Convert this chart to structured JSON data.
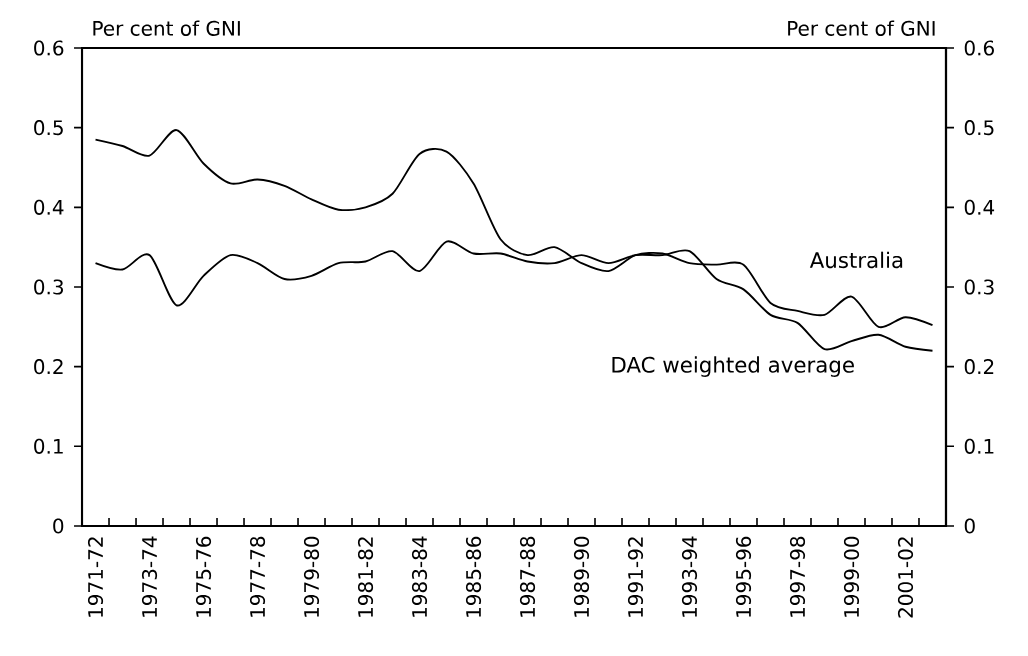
{
  "chart_data": {
    "type": "line",
    "categories": [
      "1971-72",
      null,
      "1973-74",
      null,
      "1975-76",
      null,
      "1977-78",
      null,
      "1979-80",
      null,
      "1981-82",
      null,
      "1983-84",
      null,
      "1985-86",
      null,
      "1987-88",
      null,
      "1989-90",
      null,
      "1991-92",
      null,
      "1993-94",
      null,
      "1995-96",
      null,
      "1997-98",
      null,
      "1999-00",
      null,
      "2001-02",
      null
    ],
    "series": [
      {
        "name": "Australia",
        "color": "#000000",
        "values": [
          0.485,
          0.477,
          0.465,
          0.497,
          0.455,
          0.43,
          0.435,
          0.427,
          0.41,
          0.397,
          0.4,
          0.417,
          0.467,
          0.47,
          0.43,
          0.36,
          0.34,
          0.35,
          0.33,
          0.32,
          0.34,
          0.342,
          0.33,
          0.328,
          0.328,
          0.28,
          0.27,
          0.265,
          0.288,
          0.25,
          0.262,
          0.252
        ]
      },
      {
        "name": "DAC weighted average",
        "color": "#000000",
        "values": [
          0.33,
          0.322,
          0.34,
          0.277,
          0.314,
          0.34,
          0.33,
          0.31,
          0.314,
          0.33,
          0.332,
          0.345,
          0.32,
          0.357,
          0.342,
          0.342,
          0.332,
          0.33,
          0.34,
          0.33,
          0.34,
          0.34,
          0.345,
          0.31,
          0.297,
          0.265,
          0.255,
          0.222,
          0.232,
          0.24,
          0.225,
          0.22
        ]
      }
    ],
    "ylabel": "Per cent of GNI",
    "y2label": "Per cent of GNI",
    "ylim": [
      0,
      0.6
    ],
    "yticks": [
      0,
      0.1,
      0.2,
      0.3,
      0.4,
      0.5,
      0.6
    ],
    "y2lim": [
      0,
      0.6
    ],
    "y2ticks": [
      0,
      0.1,
      0.2,
      0.3,
      0.4,
      0.5,
      0.6
    ],
    "legend": false,
    "grid": false,
    "marker": "none",
    "line_style": "solid"
  }
}
